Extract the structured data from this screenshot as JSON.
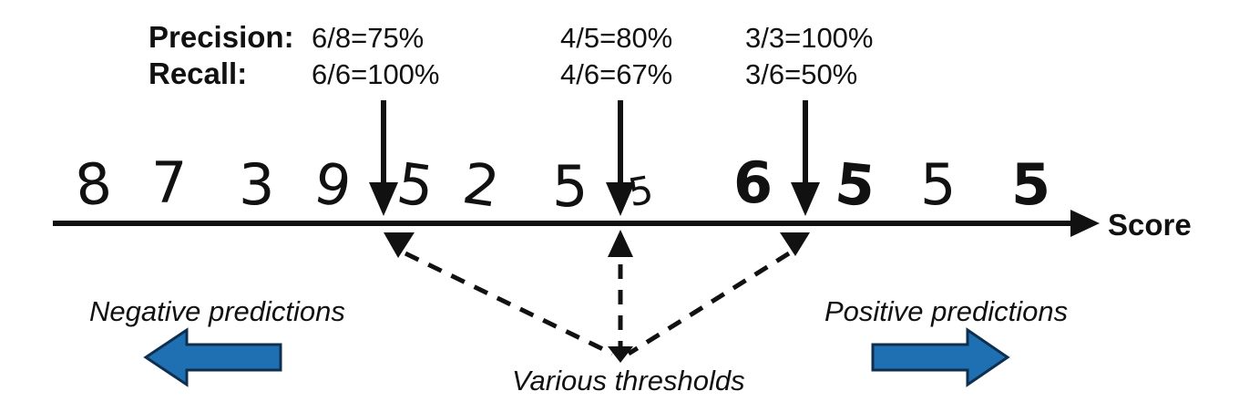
{
  "labels": {
    "precision": "Precision:",
    "recall": "Recall:",
    "score": "Score",
    "negative": "Negative predictions",
    "positive": "Positive predictions",
    "thresholds": "Various thresholds"
  },
  "thresholds": [
    {
      "precision": "6/8=75%",
      "recall": "6/6=100%"
    },
    {
      "precision": "4/5=80%",
      "recall": "4/6=67%"
    },
    {
      "precision": "3/3=100%",
      "recall": "3/6=50%"
    }
  ],
  "digits": [
    "8",
    "7",
    "3",
    "9",
    "5",
    "2",
    "5",
    "5",
    "6",
    "5",
    "5",
    "5"
  ],
  "colors": {
    "ink": "#111111",
    "arrow_fill": "#1f6fb3",
    "arrow_stroke": "#0f2f4f"
  }
}
